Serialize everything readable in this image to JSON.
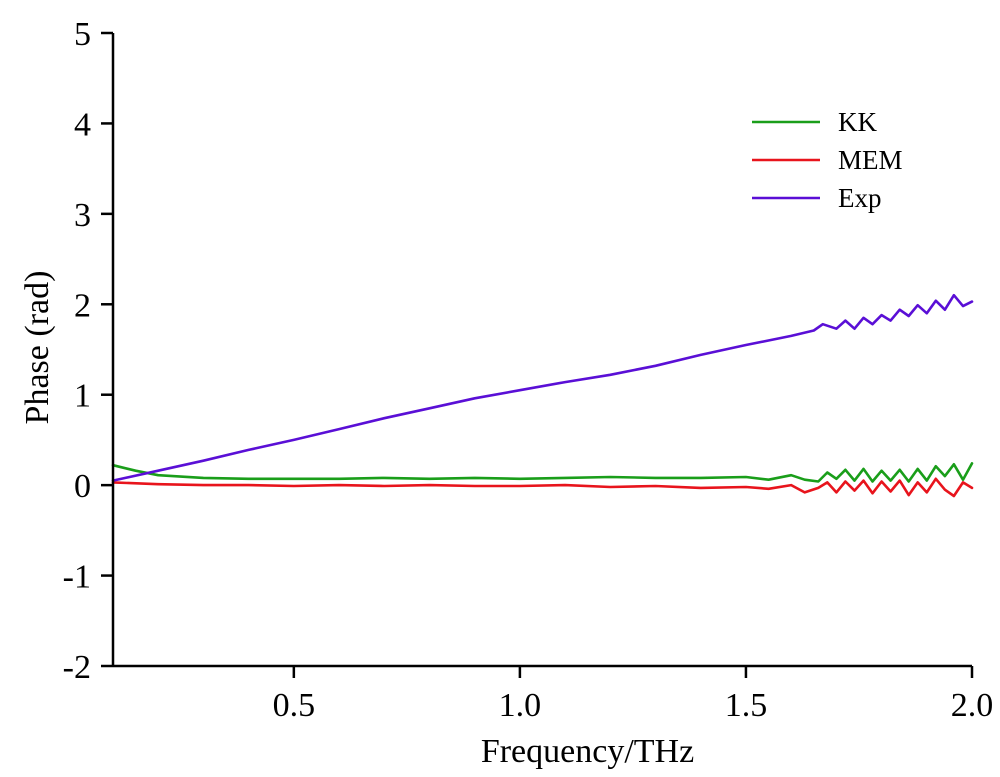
{
  "chart_data": {
    "type": "line",
    "xlabel": "Frequency/THz",
    "ylabel": "Phase (rad)",
    "xlim": [
      0.1,
      2.0
    ],
    "ylim": [
      -2,
      5
    ],
    "xticks": [
      0.5,
      1.0,
      1.5,
      2.0
    ],
    "xtick_labels": [
      "0.5",
      "1.0",
      "1.5",
      "2.0"
    ],
    "yticks": [
      -2,
      -1,
      0,
      1,
      2,
      3,
      4,
      5
    ],
    "ytick_labels": [
      "-2",
      "-1",
      "0",
      "1",
      "2",
      "3",
      "4",
      "5"
    ],
    "grid": false,
    "legend_position": "top-right",
    "series": [
      {
        "name": "KK",
        "color": "#1a9e1a",
        "x": [
          0.1,
          0.15,
          0.2,
          0.3,
          0.4,
          0.5,
          0.6,
          0.7,
          0.8,
          0.9,
          1.0,
          1.1,
          1.2,
          1.3,
          1.4,
          1.5,
          1.55,
          1.6,
          1.63,
          1.66,
          1.68,
          1.7,
          1.72,
          1.74,
          1.76,
          1.78,
          1.8,
          1.82,
          1.84,
          1.86,
          1.88,
          1.9,
          1.92,
          1.94,
          1.96,
          1.98,
          2.0
        ],
        "y": [
          0.22,
          0.16,
          0.11,
          0.08,
          0.07,
          0.07,
          0.07,
          0.08,
          0.07,
          0.08,
          0.07,
          0.08,
          0.09,
          0.08,
          0.08,
          0.09,
          0.06,
          0.11,
          0.06,
          0.04,
          0.14,
          0.07,
          0.17,
          0.05,
          0.18,
          0.04,
          0.16,
          0.05,
          0.17,
          0.04,
          0.18,
          0.05,
          0.21,
          0.1,
          0.23,
          0.06,
          0.24
        ]
      },
      {
        "name": "MEM",
        "color": "#e8141c",
        "x": [
          0.1,
          0.2,
          0.3,
          0.4,
          0.5,
          0.6,
          0.7,
          0.8,
          0.9,
          1.0,
          1.1,
          1.2,
          1.3,
          1.4,
          1.5,
          1.55,
          1.6,
          1.63,
          1.66,
          1.68,
          1.7,
          1.72,
          1.74,
          1.76,
          1.78,
          1.8,
          1.82,
          1.84,
          1.86,
          1.88,
          1.9,
          1.92,
          1.94,
          1.96,
          1.98,
          2.0
        ],
        "y": [
          0.03,
          0.01,
          0.0,
          0.0,
          -0.01,
          0.0,
          -0.01,
          0.0,
          -0.01,
          -0.01,
          0.0,
          -0.02,
          -0.01,
          -0.03,
          -0.02,
          -0.04,
          0.0,
          -0.08,
          -0.03,
          0.03,
          -0.08,
          0.04,
          -0.06,
          0.05,
          -0.09,
          0.04,
          -0.07,
          0.05,
          -0.11,
          0.03,
          -0.08,
          0.07,
          -0.05,
          -0.12,
          0.03,
          -0.03
        ]
      },
      {
        "name": "Exp",
        "color": "#5a0fd6",
        "x": [
          0.1,
          0.2,
          0.3,
          0.4,
          0.5,
          0.6,
          0.7,
          0.8,
          0.9,
          1.0,
          1.1,
          1.2,
          1.3,
          1.4,
          1.5,
          1.6,
          1.65,
          1.67,
          1.7,
          1.72,
          1.74,
          1.76,
          1.78,
          1.8,
          1.82,
          1.84,
          1.86,
          1.88,
          1.9,
          1.92,
          1.94,
          1.96,
          1.98,
          2.0
        ],
        "y": [
          0.05,
          0.16,
          0.27,
          0.39,
          0.5,
          0.62,
          0.74,
          0.85,
          0.96,
          1.05,
          1.14,
          1.22,
          1.32,
          1.44,
          1.55,
          1.65,
          1.71,
          1.78,
          1.73,
          1.82,
          1.73,
          1.85,
          1.78,
          1.88,
          1.82,
          1.94,
          1.87,
          1.99,
          1.9,
          2.04,
          1.94,
          2.1,
          1.98,
          2.03
        ]
      }
    ]
  }
}
